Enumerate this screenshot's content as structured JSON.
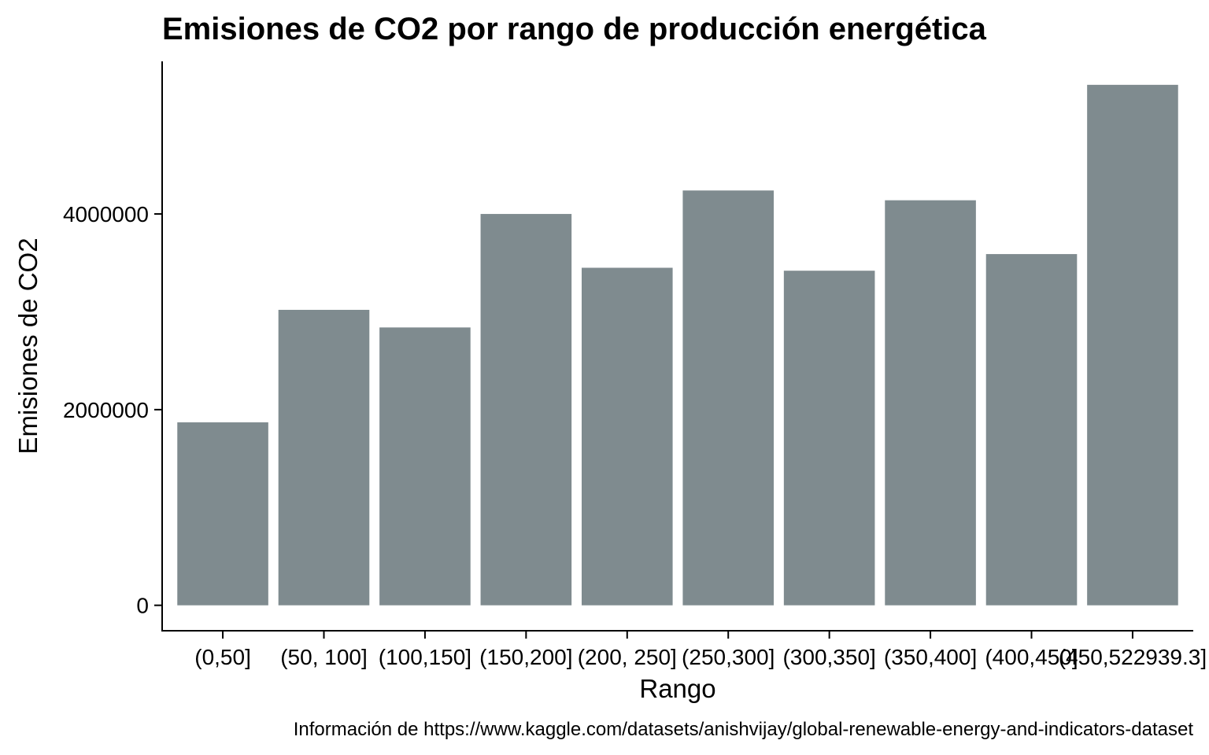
{
  "chart_data": {
    "type": "bar",
    "title": "Emisiones de CO2 por rango de producción energética",
    "xlabel": "Rango",
    "ylabel": "Emisiones de CO2",
    "caption": "Información de https://www.kaggle.com/datasets/anishvijay/global-renewable-energy-and-indicators-dataset",
    "categories": [
      "(0,50]",
      "(50, 100]",
      "(100,150]",
      "(150,200]",
      "(200, 250]",
      "(250,300]",
      "(300,350]",
      "(350,400]",
      "(400,450]",
      "(450,522939.3]"
    ],
    "values": [
      1870000,
      3020000,
      2840000,
      4000000,
      3450000,
      4240000,
      3420000,
      4140000,
      3590000,
      5320000
    ],
    "y_ticks": [
      0,
      2000000,
      4000000
    ],
    "y_tick_labels": [
      "0",
      "2000000",
      "4000000"
    ],
    "ylim": [
      -260000,
      5560000
    ],
    "grid": false,
    "legend": "none",
    "bar_color": "#7f8b8f"
  }
}
